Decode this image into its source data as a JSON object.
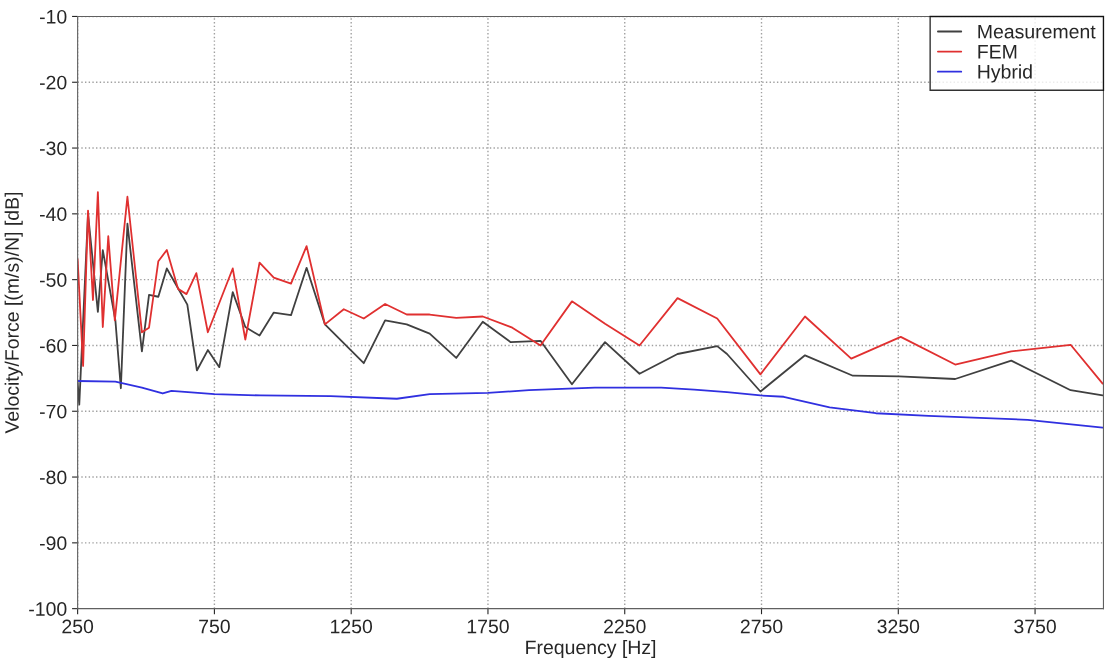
{
  "chart_data": {
    "type": "line",
    "xlabel": "Frequency [Hz]",
    "ylabel": "Velocity/Force [(m/s)/N] [dB]",
    "xlim": [
      250,
      4000
    ],
    "ylim": [
      -100,
      -10
    ],
    "xticks": [
      250,
      750,
      1250,
      1750,
      2250,
      2750,
      3250,
      3750
    ],
    "yticks": [
      -100,
      -90,
      -80,
      -70,
      -60,
      -50,
      -40,
      -30,
      -20,
      -10
    ],
    "grid": true,
    "legend": "top right",
    "line_style": "solid",
    "marker": "none",
    "series": [
      {
        "name": "Measurement",
        "color": "#404040",
        "x": [
          250,
          256,
          288,
          324,
          342,
          388,
          408,
          432,
          485,
          511,
          545,
          576,
          617,
          651,
          686,
          726,
          768,
          817,
          863,
          915,
          967,
          1030,
          1087,
          1154,
          1296,
          1374,
          1453,
          1537,
          1634,
          1731,
          1833,
          1942,
          2057,
          2178,
          2304,
          2443,
          2588,
          2624,
          2746,
          2909,
          3084,
          3253,
          3458,
          3663,
          3880,
          3997
        ],
        "values": [
          -65.6,
          -69,
          -40,
          -54.9,
          -45.5,
          -56.2,
          -66.5,
          -41.5,
          -60.9,
          -52.3,
          -52.6,
          -48.3,
          -51.3,
          -53.8,
          -63.8,
          -60.7,
          -63.3,
          -51.9,
          -57.2,
          -58.5,
          -55,
          -55.4,
          -48.2,
          -56.8,
          -62.7,
          -56.2,
          -56.8,
          -58.2,
          -61.9,
          -56.4,
          -59.5,
          -59.3,
          -65.9,
          -59.5,
          -64.3,
          -61.3,
          -60.1,
          -61.3,
          -67,
          -61.5,
          -64.6,
          -64.7,
          -65.1,
          -62.3,
          -66.8,
          -67.6
        ]
      },
      {
        "name": "FEM",
        "color": "#e03030",
        "x": [
          250,
          270,
          288,
          306,
          324,
          342,
          362,
          386,
          432,
          485,
          511,
          545,
          576,
          617,
          648,
          684,
          726,
          817,
          863,
          915,
          967,
          1030,
          1087,
          1154,
          1223,
          1296,
          1374,
          1453,
          1537,
          1634,
          1731,
          1839,
          1942,
          2057,
          2178,
          2304,
          2443,
          2588,
          2746,
          2909,
          3078,
          3259,
          3458,
          3663,
          3880,
          3997
        ],
        "values": [
          -46.9,
          -63.1,
          -39.5,
          -53.1,
          -36.7,
          -57.2,
          -43.4,
          -56.2,
          -37.4,
          -58,
          -57.3,
          -47.2,
          -45.5,
          -51.4,
          -52.2,
          -49,
          -58,
          -48.3,
          -59.1,
          -47.4,
          -49.7,
          -50.6,
          -44.9,
          -56.8,
          -54.5,
          -55.9,
          -53.7,
          -55.3,
          -55.3,
          -55.8,
          -55.6,
          -57.3,
          -60,
          -53.3,
          -56.7,
          -60,
          -52.8,
          -55.9,
          -64.4,
          -55.6,
          -62,
          -58.7,
          -62.9,
          -60.9,
          -59.9,
          -65.8
        ]
      },
      {
        "name": "Hybrid",
        "color": "#3030e0",
        "x": [
          250,
          388,
          485,
          561,
          593,
          750,
          919,
          1175,
          1417,
          1537,
          1750,
          1900,
          2141,
          2383,
          2504,
          2624,
          2746,
          2831,
          2999,
          3168,
          3361,
          3723,
          3997
        ],
        "values": [
          -65.4,
          -65.5,
          -66.4,
          -67.3,
          -66.9,
          -67.4,
          -67.6,
          -67.7,
          -68.1,
          -67.4,
          -67.2,
          -66.8,
          -66.4,
          -66.4,
          -66.7,
          -67.1,
          -67.6,
          -67.8,
          -69.4,
          -70.3,
          -70.7,
          -71.3,
          -72.5
        ]
      }
    ]
  }
}
